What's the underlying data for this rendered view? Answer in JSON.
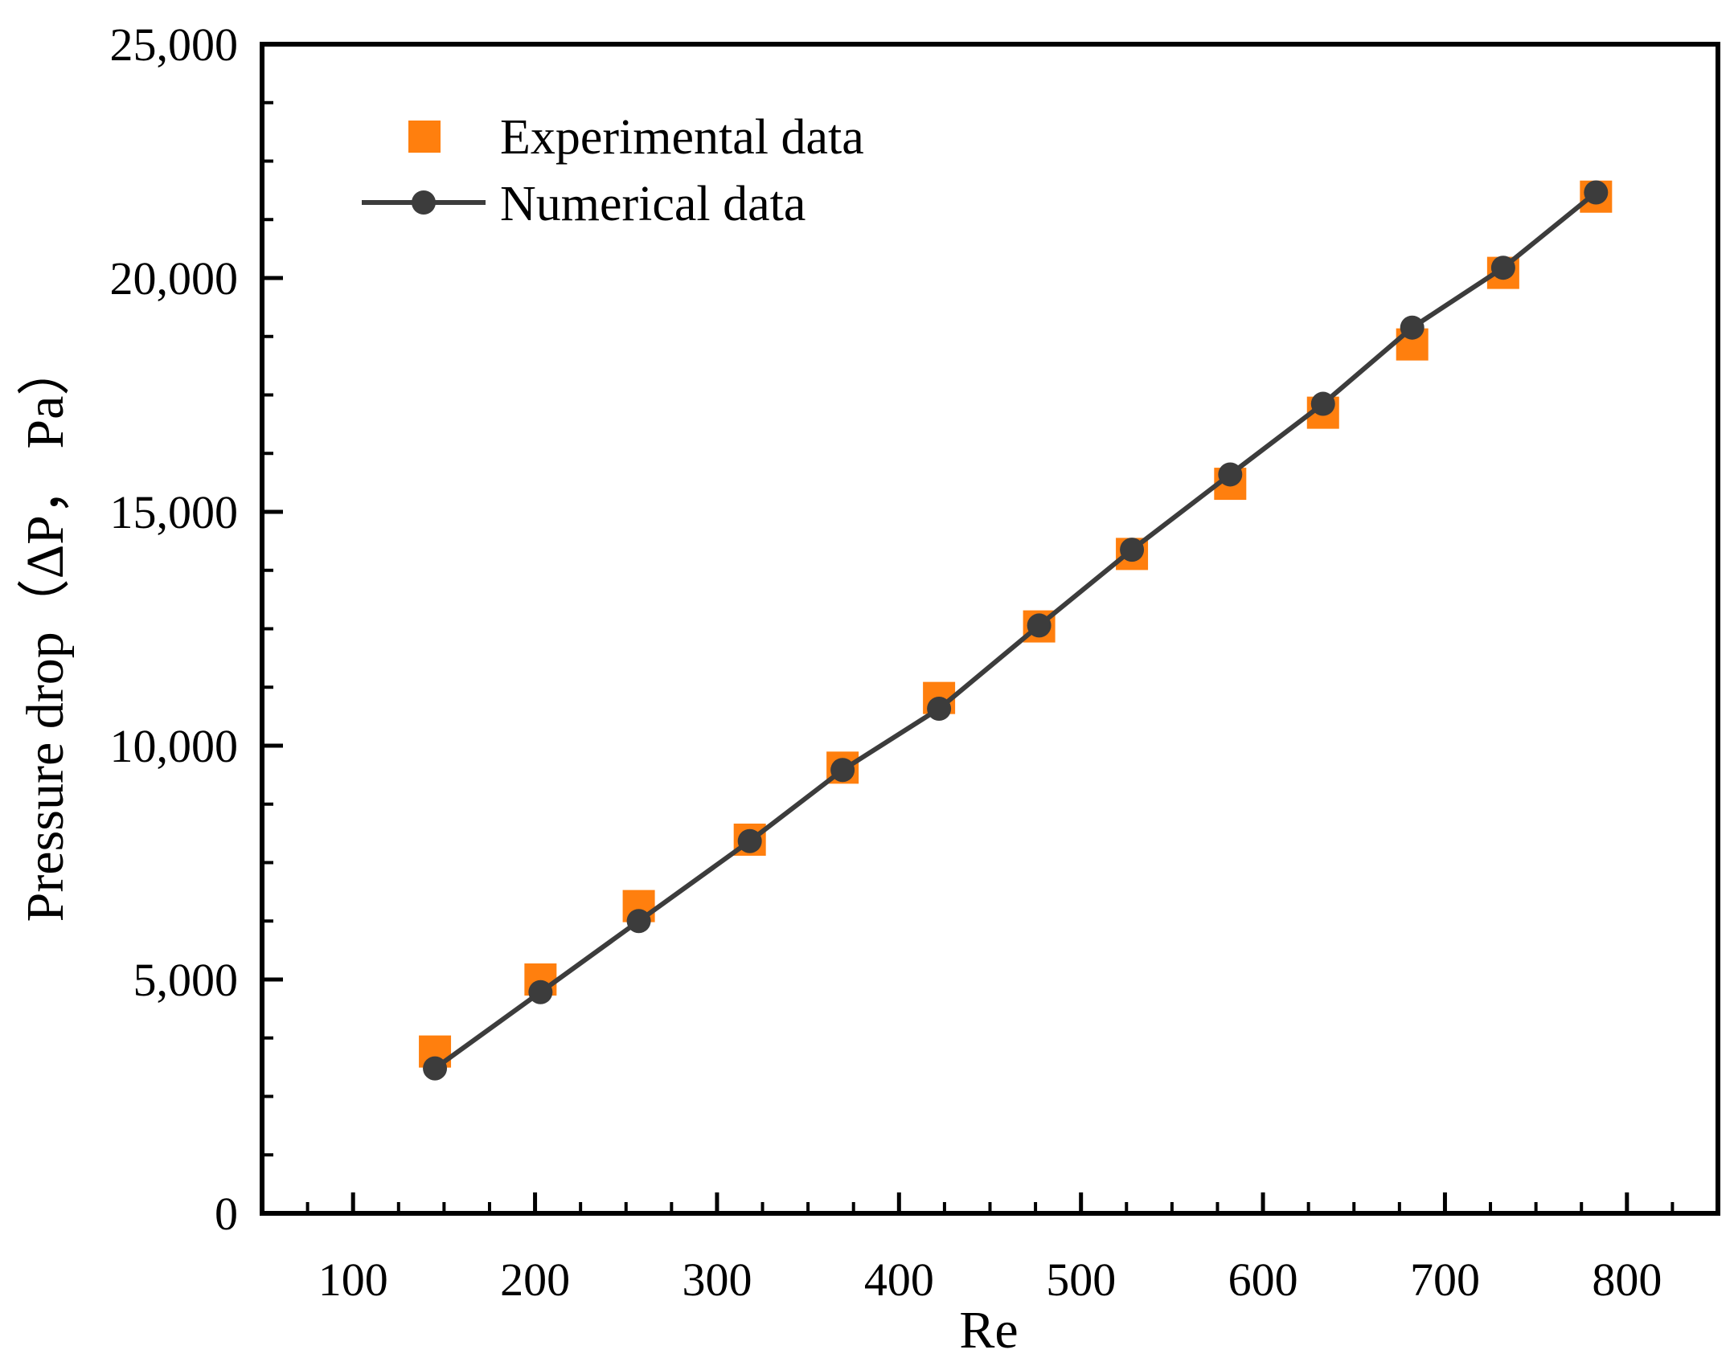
{
  "chart_data": {
    "type": "scatter",
    "title": "",
    "xlabel": "Re",
    "ylabel": "Pressure drop（ΔP， Pa）",
    "xlim": [
      50,
      850
    ],
    "ylim": [
      0,
      25000
    ],
    "xticks": [
      100,
      200,
      300,
      400,
      500,
      600,
      700,
      800
    ],
    "xtick_labels": [
      "100",
      "200",
      "300",
      "400",
      "500",
      "600",
      "700",
      "800"
    ],
    "yticks": [
      0,
      5000,
      10000,
      15000,
      20000,
      25000
    ],
    "ytick_labels": [
      "0",
      "5,000",
      "10,000",
      "15,000",
      "20,000",
      "25,000"
    ],
    "grid": false,
    "legend_position": "top-left",
    "series": [
      {
        "name": "Experimental data",
        "style": "square-markers",
        "color": "#ff7f0e",
        "x": [
          145,
          203,
          257,
          318,
          369,
          422,
          477,
          528,
          582,
          633,
          682,
          732,
          783
        ],
        "y": [
          3460,
          5000,
          6570,
          7990,
          9530,
          11020,
          12550,
          14100,
          15600,
          17120,
          18580,
          20110,
          21740
        ]
      },
      {
        "name": "Numerical data",
        "style": "line-with-circle-markers",
        "color": "#3c3c3c",
        "x": [
          145,
          203,
          257,
          318,
          369,
          422,
          477,
          528,
          582,
          633,
          682,
          732,
          783
        ],
        "y": [
          3100,
          4730,
          6250,
          7960,
          9480,
          10790,
          12570,
          14190,
          15800,
          17310,
          18940,
          20220,
          21830
        ]
      }
    ]
  }
}
